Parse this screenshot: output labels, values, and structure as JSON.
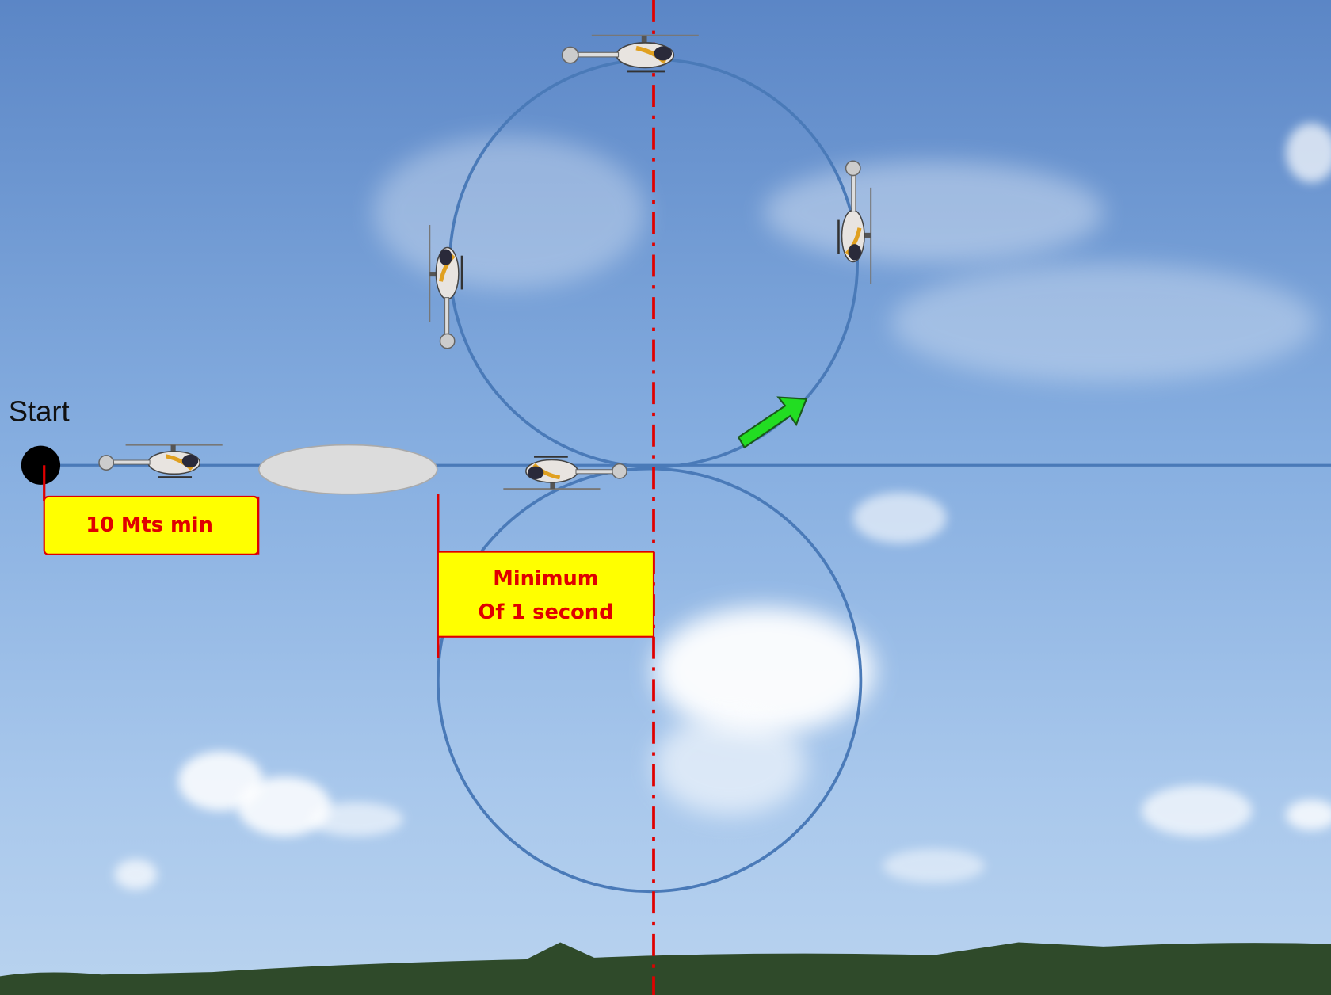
{
  "labels": {
    "start": "Start",
    "distance": "10 Mts min",
    "duration": [
      "Minimum",
      "Of 1 second"
    ]
  }
}
